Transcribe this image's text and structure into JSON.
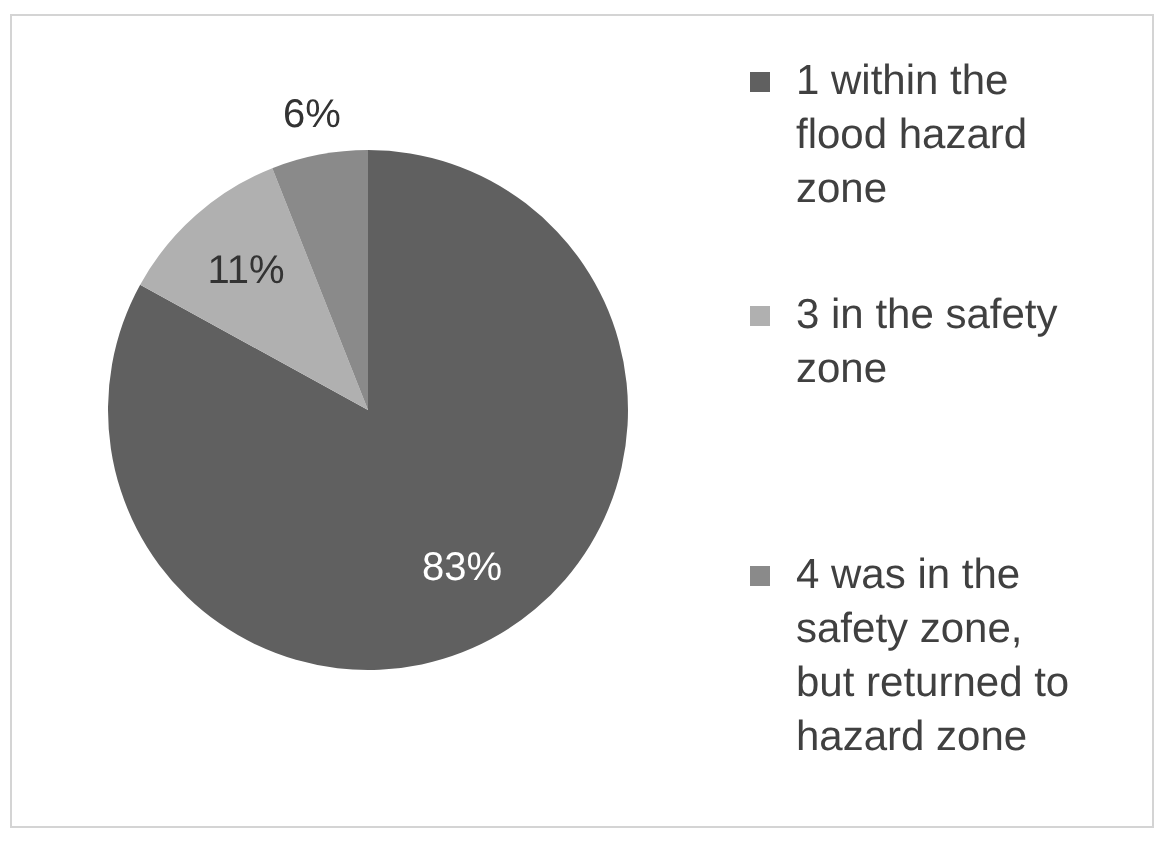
{
  "chart_data": {
    "type": "pie",
    "categories": [
      "1 within the flood hazard zone",
      "3 in the safety zone",
      "4 was in the safety zone, but returned to hazard zone"
    ],
    "values": [
      83,
      11,
      6
    ],
    "colors": [
      "#606060",
      "#b0b0b0",
      "#8a8a8a"
    ],
    "value_labels": [
      "83%",
      "11%",
      "6%"
    ],
    "legend": "right"
  }
}
